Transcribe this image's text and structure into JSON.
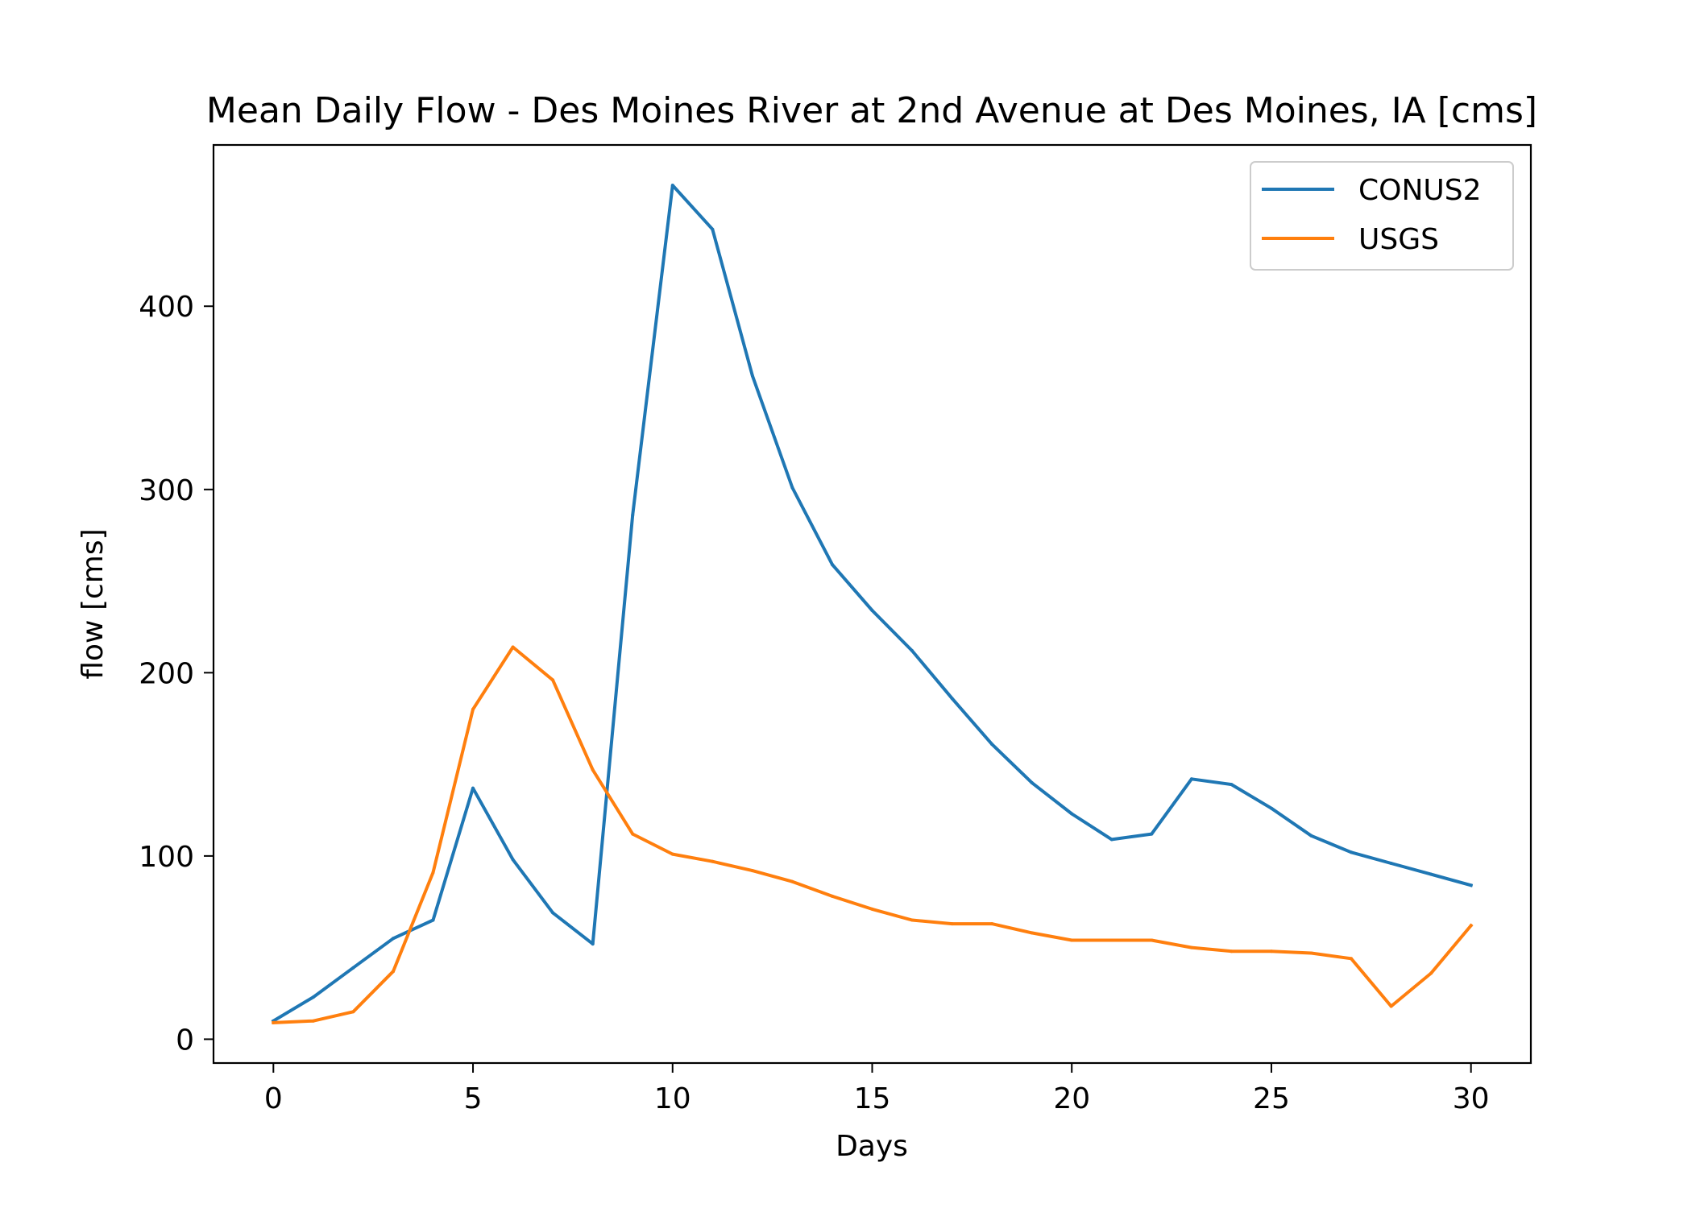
{
  "chart_data": {
    "type": "line",
    "title": "Mean Daily Flow - Des Moines River at 2nd Avenue at Des Moines, IA [cms]",
    "xlabel": "Days",
    "ylabel": "flow [cms]",
    "xlim": [
      -1.5,
      31.5
    ],
    "ylim": [
      -13,
      488
    ],
    "xticks": [
      0,
      5,
      10,
      15,
      20,
      25,
      30
    ],
    "yticks": [
      0,
      100,
      200,
      300,
      400
    ],
    "grid": false,
    "legend_position": "top-right",
    "x": [
      0,
      1,
      2,
      3,
      4,
      5,
      6,
      7,
      8,
      9,
      10,
      11,
      12,
      13,
      14,
      15,
      16,
      17,
      18,
      19,
      20,
      21,
      22,
      23,
      24,
      25,
      26,
      27,
      28,
      29,
      30
    ],
    "series": [
      {
        "name": "CONUS2",
        "color": "#1f77b4",
        "values": [
          10,
          23,
          39,
          55,
          65,
          137,
          98,
          69,
          52,
          286,
          466,
          442,
          362,
          301,
          259,
          234,
          212,
          186,
          161,
          140,
          123,
          109,
          112,
          142,
          139,
          126,
          111,
          102,
          96,
          90,
          84
        ]
      },
      {
        "name": "USGS",
        "color": "#ff7f0e",
        "values": [
          9,
          10,
          15,
          37,
          91,
          180,
          214,
          196,
          147,
          112,
          101,
          97,
          92,
          86,
          78,
          71,
          65,
          63,
          63,
          58,
          54,
          54,
          54,
          50,
          48,
          48,
          47,
          44,
          18,
          36,
          62
        ]
      }
    ]
  }
}
